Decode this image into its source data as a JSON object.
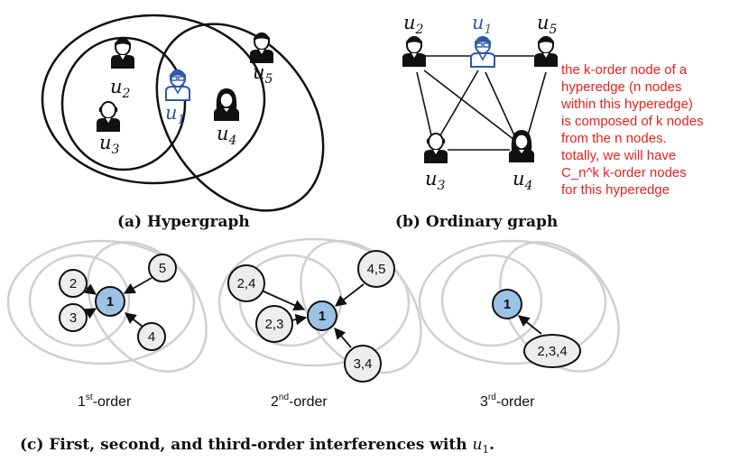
{
  "panel_a": {
    "caption": "(a) Hypergraph",
    "users": [
      {
        "base": "u",
        "sub": "2"
      },
      {
        "base": "u",
        "sub": "5"
      },
      {
        "base": "u",
        "sub": "1"
      },
      {
        "base": "u",
        "sub": "3"
      },
      {
        "base": "u",
        "sub": "4"
      }
    ]
  },
  "panel_b": {
    "caption": "(b) Ordinary graph",
    "users": [
      {
        "base": "u",
        "sub": "2"
      },
      {
        "base": "u",
        "sub": "1"
      },
      {
        "base": "u",
        "sub": "5"
      },
      {
        "base": "u",
        "sub": "3"
      },
      {
        "base": "u",
        "sub": "4"
      }
    ],
    "note_lines": [
      "the k-order node of a",
      "hyperedge (n nodes",
      "within this hyperedge)",
      "is composed of k nodes",
      "from the n nodes.",
      "totally, we will have",
      "C_n^k k-order nodes",
      "for this hyperedge"
    ]
  },
  "panel_c": {
    "caption_prefix": "(c) First, second, and third-order interferences with ",
    "caption_var": "u",
    "caption_sub": "1",
    "caption_suffix": ".",
    "center_label": "1",
    "first_order": {
      "label_num": "1",
      "label_sup": "st",
      "label_rest": "-order",
      "nodes": [
        "2",
        "3",
        "5",
        "4"
      ]
    },
    "second_order": {
      "label_num": "2",
      "label_sup": "nd",
      "label_rest": "-order",
      "nodes": [
        "2,4",
        "2,3",
        "4,5",
        "3,4"
      ]
    },
    "third_order": {
      "label_num": "3",
      "label_sup": "rd",
      "label_rest": "-order",
      "nodes": [
        "2,3,4"
      ]
    }
  },
  "colors": {
    "highlight_node": "#9cc3e6",
    "user_blue": "#2f5aa8",
    "note_red": "#e8201e",
    "ellipse_gray": "#d0d0d0"
  }
}
